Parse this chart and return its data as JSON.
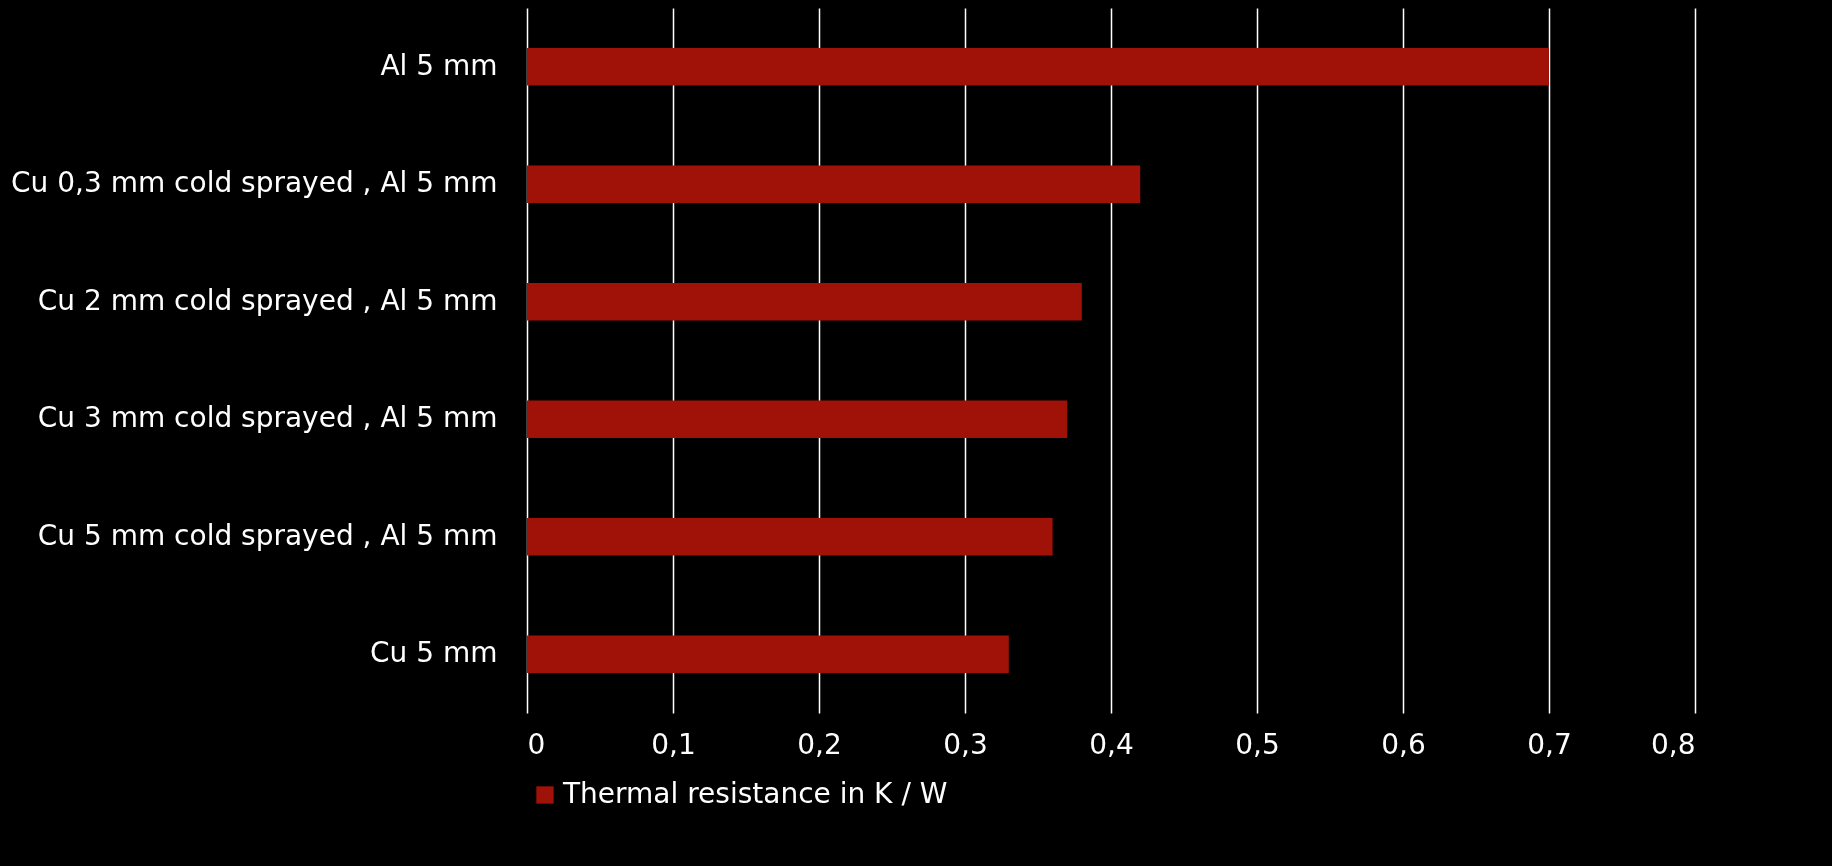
{
  "chart_data": {
    "type": "bar",
    "orientation": "horizontal",
    "categories": [
      "Al 5 mm",
      "Cu 0,3 mm cold sprayed , Al 5 mm",
      "Cu 2 mm cold sprayed , Al 5 mm",
      "Cu 3 mm cold sprayed , Al 5 mm",
      "Cu 5 mm cold sprayed , Al 5 mm",
      "Cu 5 mm"
    ],
    "series": [
      {
        "name": "Thermal resistance in K / W",
        "color": "#a01208",
        "values": [
          0.7,
          0.42,
          0.38,
          0.37,
          0.36,
          0.33
        ]
      }
    ],
    "xlim": [
      0,
      0.8
    ],
    "xticks": [
      0,
      {
        "value": 0.1,
        "label": "0,1"
      },
      {
        "value": 0.2,
        "label": "0,2"
      },
      {
        "value": 0.3,
        "label": "0,3"
      },
      {
        "value": 0.4,
        "label": "0,4"
      },
      {
        "value": 0.5,
        "label": "0,5"
      },
      {
        "value": 0.6,
        "label": "0,6"
      },
      {
        "value": 0.7,
        "label": "0,7"
      },
      {
        "value": 0.8,
        "label": "0,8"
      }
    ],
    "grid": "x",
    "legend": "bottom"
  }
}
